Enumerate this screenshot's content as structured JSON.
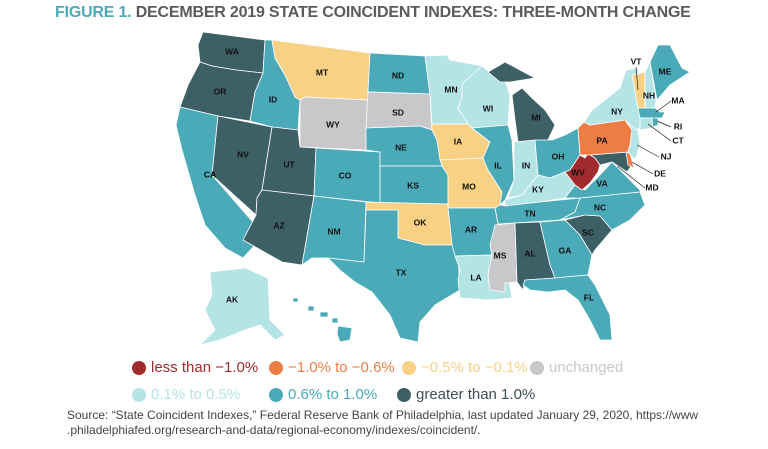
{
  "title": {
    "figure_label": "FIGURE 1.",
    "text": "DECEMBER 2019 STATE COINCIDENT INDEXES: THREE-MONTH CHANGE"
  },
  "colors": {
    "title_accent": "#4aaab8",
    "title_text": "#5a5b5e",
    "state_border": "#ffffff"
  },
  "legend": [
    {
      "key": "lt_-1.0",
      "label": "less than −1.0%",
      "color": "#a12b2d"
    },
    {
      "key": "-1.0_-0.6",
      "label": "−1.0% to −0.6%",
      "color": "#ee7d45"
    },
    {
      "key": "-0.5_-0.1",
      "label": "−0.5% to −0.1%",
      "color": "#f8d185"
    },
    {
      "key": "unchanged",
      "label": "unchanged",
      "color": "#c8c8cb"
    },
    {
      "key": "0.1_0.5",
      "label": "0.1% to 0.5%",
      "color": "#b5e4e6"
    },
    {
      "key": "0.6_1.0",
      "label": "0.6% to 1.0%",
      "color": "#4aaab8"
    },
    {
      "key": "gt_1.0",
      "label": "greater than 1.0%",
      "color": "#3d5f66"
    }
  ],
  "states": [
    {
      "abbr": "WA",
      "category": "gt_1.0"
    },
    {
      "abbr": "OR",
      "category": "gt_1.0"
    },
    {
      "abbr": "CA",
      "category": "0.6_1.0"
    },
    {
      "abbr": "NV",
      "category": "gt_1.0"
    },
    {
      "abbr": "ID",
      "category": "0.6_1.0"
    },
    {
      "abbr": "MT",
      "category": "-0.5_-0.1"
    },
    {
      "abbr": "WY",
      "category": "unchanged"
    },
    {
      "abbr": "UT",
      "category": "gt_1.0"
    },
    {
      "abbr": "AZ",
      "category": "gt_1.0"
    },
    {
      "abbr": "CO",
      "category": "0.6_1.0"
    },
    {
      "abbr": "NM",
      "category": "0.6_1.0"
    },
    {
      "abbr": "ND",
      "category": "0.6_1.0"
    },
    {
      "abbr": "SD",
      "category": "unchanged"
    },
    {
      "abbr": "NE",
      "category": "0.6_1.0"
    },
    {
      "abbr": "KS",
      "category": "0.6_1.0"
    },
    {
      "abbr": "OK",
      "category": "-0.5_-0.1"
    },
    {
      "abbr": "TX",
      "category": "0.6_1.0"
    },
    {
      "abbr": "MN",
      "category": "0.1_0.5"
    },
    {
      "abbr": "WI",
      "category": "0.1_0.5"
    },
    {
      "abbr": "IA",
      "category": "-0.5_-0.1"
    },
    {
      "abbr": "MO",
      "category": "-0.5_-0.1"
    },
    {
      "abbr": "IL",
      "category": "0.6_1.0"
    },
    {
      "abbr": "MI",
      "category": "gt_1.0"
    },
    {
      "abbr": "IN",
      "category": "0.1_0.5"
    },
    {
      "abbr": "OH",
      "category": "0.6_1.0"
    },
    {
      "abbr": "KY",
      "category": "0.1_0.5"
    },
    {
      "abbr": "TN",
      "category": "0.6_1.0"
    },
    {
      "abbr": "AR",
      "category": "0.6_1.0"
    },
    {
      "abbr": "LA",
      "category": "0.1_0.5"
    },
    {
      "abbr": "MS",
      "category": "unchanged"
    },
    {
      "abbr": "AL",
      "category": "gt_1.0"
    },
    {
      "abbr": "GA",
      "category": "0.6_1.0"
    },
    {
      "abbr": "FL",
      "category": "0.6_1.0"
    },
    {
      "abbr": "SC",
      "category": "gt_1.0"
    },
    {
      "abbr": "NC",
      "category": "0.6_1.0"
    },
    {
      "abbr": "VA",
      "category": "0.6_1.0"
    },
    {
      "abbr": "WV",
      "category": "lt_-1.0"
    },
    {
      "abbr": "MD",
      "category": "gt_1.0"
    },
    {
      "abbr": "DE",
      "category": "-1.0_-0.6"
    },
    {
      "abbr": "PA",
      "category": "-1.0_-0.6"
    },
    {
      "abbr": "NJ",
      "category": "0.1_0.5"
    },
    {
      "abbr": "NY",
      "category": "0.1_0.5"
    },
    {
      "abbr": "VT",
      "category": "-0.5_-0.1"
    },
    {
      "abbr": "NH",
      "category": "0.1_0.5"
    },
    {
      "abbr": "ME",
      "category": "0.6_1.0"
    },
    {
      "abbr": "MA",
      "category": "0.6_1.0"
    },
    {
      "abbr": "CT",
      "category": "0.1_0.5"
    },
    {
      "abbr": "RI",
      "category": "0.6_1.0"
    },
    {
      "abbr": "AK",
      "category": "0.1_0.5"
    },
    {
      "abbr": "HI",
      "category": "0.6_1.0"
    }
  ],
  "source": {
    "line1": "Source: “State Coincident Indexes,” Federal Reserve Bank of Philadelphia, last updated January 29, 2020, https://www",
    "line2": ".philadelphiafed.org/research-and-data/regional-economy/indexes/coincident/."
  }
}
